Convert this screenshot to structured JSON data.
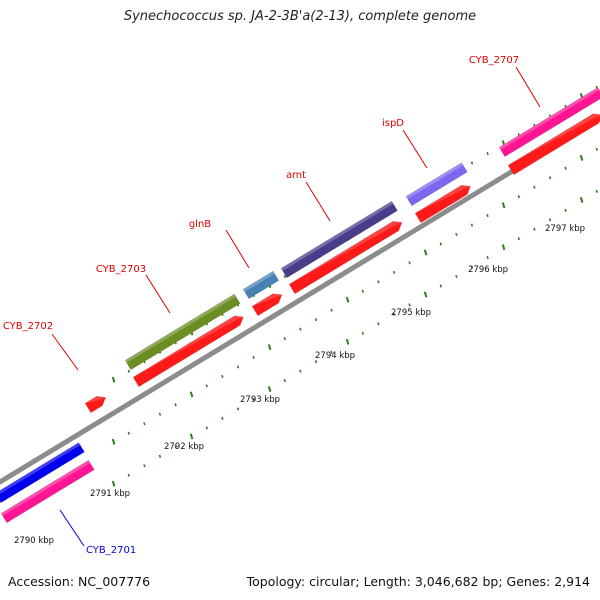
{
  "title": "Synechococcus sp. JA-2-3B'a(2-13), complete genome",
  "footer": {
    "accession": "Accession: NC_007776",
    "summary": "Topology: circular; Length: 3,046,682 bp; Genes: 2,914"
  },
  "colors": {
    "backbone": "#8c8c8c",
    "tick": "#2e7d1e",
    "cds_forward": "#ff1a1a",
    "label_red": "#dd0000",
    "label_blue": "#0000dd"
  },
  "map": {
    "kbp_labels": [
      "2790 kbp",
      "2791 kbp",
      "2792 kbp",
      "2793 kbp",
      "2794 kbp",
      "2795 kbp",
      "2796 kbp",
      "2797 kbp"
    ],
    "genes": [
      {
        "label": "CYB_2701",
        "label_color": "#0000dd",
        "feature_color": "#ff1493"
      },
      {
        "label": "",
        "feature_color": "#0000ee"
      },
      {
        "label": "CYB_2702",
        "label_color": "#dd0000",
        "feature_color": "#ff1a1a"
      },
      {
        "label": "CYB_2703",
        "label_color": "#dd0000",
        "feature_color": "#6b8e23"
      },
      {
        "label": "glnB",
        "label_color": "#dd0000",
        "feature_color": "#4682b4"
      },
      {
        "label": "amt",
        "label_color": "#dd0000",
        "feature_color": "#483d8b"
      },
      {
        "label": "ispD",
        "label_color": "#dd0000",
        "feature_color": "#7b68ee"
      },
      {
        "label": "CYB_2707",
        "label_color": "#dd0000",
        "feature_color": "#ff1493"
      }
    ]
  }
}
